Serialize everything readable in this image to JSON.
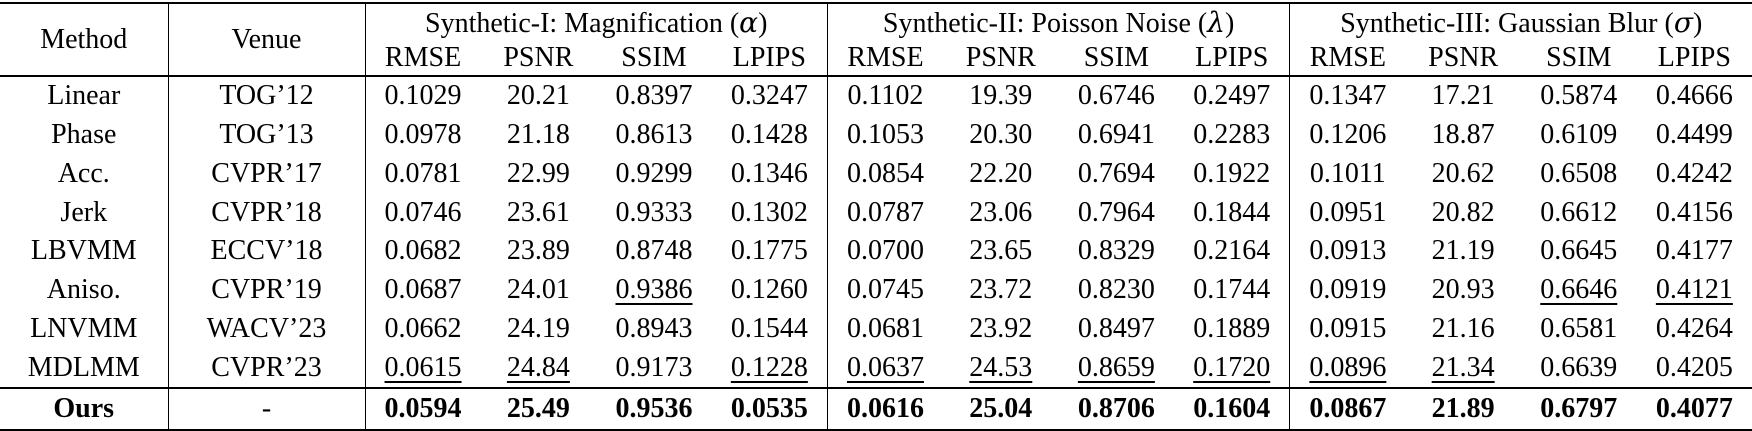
{
  "table": {
    "col_method": "Method",
    "col_venue": "Venue",
    "groups": [
      {
        "prefix": "Synthetic-I: Magnification (",
        "symbol": "α",
        "suffix": ")",
        "metrics": [
          "RMSE",
          "PSNR",
          "SSIM",
          "LPIPS"
        ]
      },
      {
        "prefix": "Synthetic-II: Poisson Noise (",
        "symbol": "λ",
        "suffix": ")",
        "metrics": [
          "RMSE",
          "PSNR",
          "SSIM",
          "LPIPS"
        ]
      },
      {
        "prefix": "Synthetic-III: Gaussian Blur (",
        "symbol": "σ",
        "suffix": ")",
        "metrics": [
          "RMSE",
          "PSNR",
          "SSIM",
          "LPIPS"
        ]
      }
    ],
    "rows": [
      {
        "method": "Linear",
        "venue": "TOG’12",
        "bold": false,
        "underline": [],
        "values": [
          "0.1029",
          "20.21",
          "0.8397",
          "0.3247",
          "0.1102",
          "19.39",
          "0.6746",
          "0.2497",
          "0.1347",
          "17.21",
          "0.5874",
          "0.4666"
        ]
      },
      {
        "method": "Phase",
        "venue": "TOG’13",
        "bold": false,
        "underline": [],
        "values": [
          "0.0978",
          "21.18",
          "0.8613",
          "0.1428",
          "0.1053",
          "20.30",
          "0.6941",
          "0.2283",
          "0.1206",
          "18.87",
          "0.6109",
          "0.4499"
        ]
      },
      {
        "method": "Acc.",
        "venue": "CVPR’17",
        "bold": false,
        "underline": [],
        "values": [
          "0.0781",
          "22.99",
          "0.9299",
          "0.1346",
          "0.0854",
          "22.20",
          "0.7694",
          "0.1922",
          "0.1011",
          "20.62",
          "0.6508",
          "0.4242"
        ]
      },
      {
        "method": "Jerk",
        "venue": "CVPR’18",
        "bold": false,
        "underline": [],
        "values": [
          "0.0746",
          "23.61",
          "0.9333",
          "0.1302",
          "0.0787",
          "23.06",
          "0.7964",
          "0.1844",
          "0.0951",
          "20.82",
          "0.6612",
          "0.4156"
        ]
      },
      {
        "method": "LBVMM",
        "venue": "ECCV’18",
        "bold": false,
        "underline": [],
        "values": [
          "0.0682",
          "23.89",
          "0.8748",
          "0.1775",
          "0.0700",
          "23.65",
          "0.8329",
          "0.2164",
          "0.0913",
          "21.19",
          "0.6645",
          "0.4177"
        ]
      },
      {
        "method": "Aniso.",
        "venue": "CVPR’19",
        "bold": false,
        "underline": [
          2,
          10,
          11
        ],
        "values": [
          "0.0687",
          "24.01",
          "0.9386",
          "0.1260",
          "0.0745",
          "23.72",
          "0.8230",
          "0.1744",
          "0.0919",
          "20.93",
          "0.6646",
          "0.4121"
        ]
      },
      {
        "method": "LNVMM",
        "venue": "WACV’23",
        "bold": false,
        "underline": [],
        "values": [
          "0.0662",
          "24.19",
          "0.8943",
          "0.1544",
          "0.0681",
          "23.92",
          "0.8497",
          "0.1889",
          "0.0915",
          "21.16",
          "0.6581",
          "0.4264"
        ]
      },
      {
        "method": "MDLMM",
        "venue": "CVPR’23",
        "bold": false,
        "underline": [
          0,
          1,
          3,
          4,
          5,
          6,
          7,
          8,
          9
        ],
        "values": [
          "0.0615",
          "24.84",
          "0.9173",
          "0.1228",
          "0.0637",
          "24.53",
          "0.8659",
          "0.1720",
          "0.0896",
          "21.34",
          "0.6639",
          "0.4205"
        ]
      },
      {
        "method": "Ours",
        "venue": "-",
        "bold": true,
        "underline": [],
        "values": [
          "0.0594",
          "25.49",
          "0.9536",
          "0.0535",
          "0.0616",
          "25.04",
          "0.8706",
          "0.1604",
          "0.0867",
          "21.89",
          "0.6797",
          "0.4077"
        ]
      }
    ]
  }
}
